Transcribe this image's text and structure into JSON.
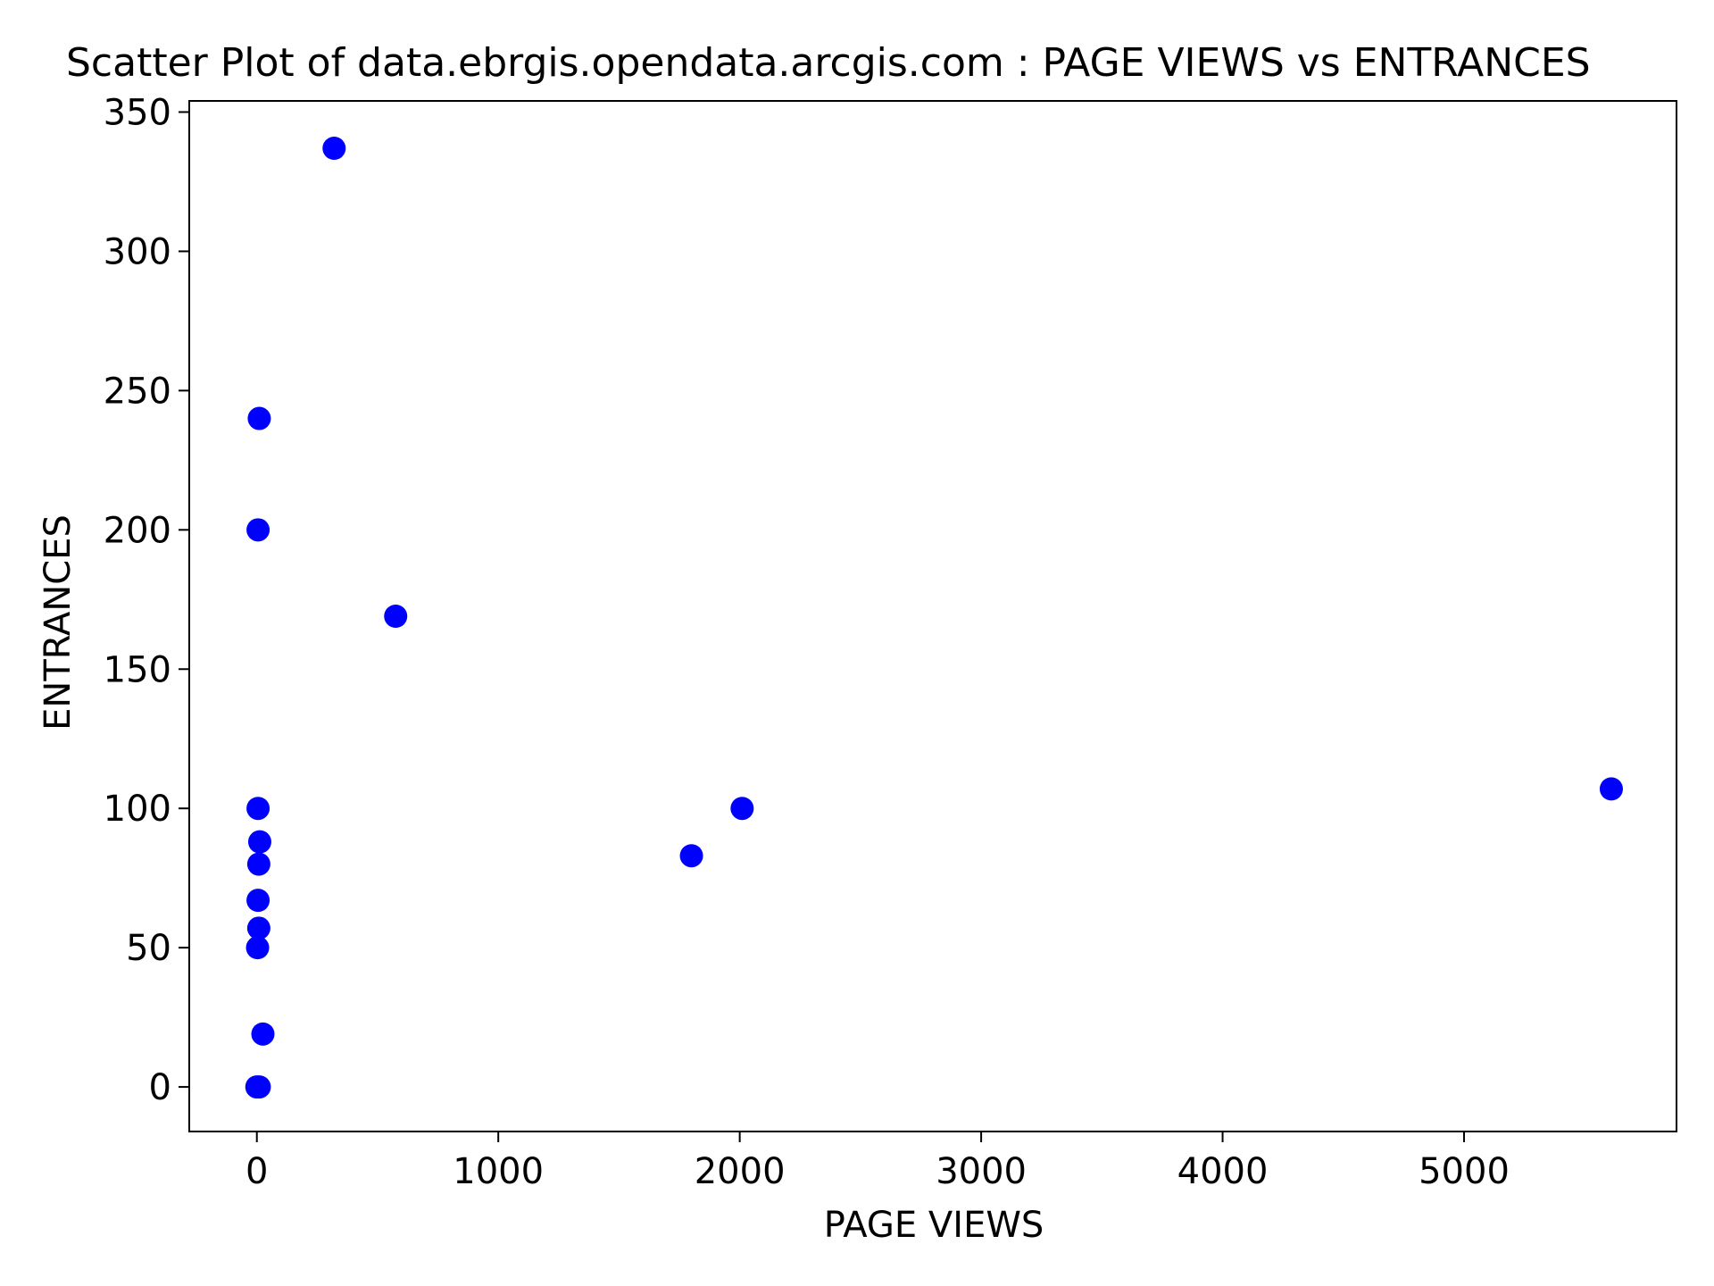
{
  "chart_data": {
    "type": "scatter",
    "title": "Scatter Plot of data.ebrgis.opendata.arcgis.com : PAGE VIEWS vs ENTRANCES",
    "xlabel": "PAGE VIEWS",
    "ylabel": "ENTRANCES",
    "xlim": [
      -280,
      5880
    ],
    "ylim": [
      -16,
      354
    ],
    "xticks": [
      0,
      1000,
      2000,
      3000,
      4000,
      5000
    ],
    "yticks": [
      0,
      50,
      100,
      150,
      200,
      250,
      300,
      350
    ],
    "grid": false,
    "legend": "none",
    "marker_color": "#0000ff",
    "points": [
      {
        "x": 320,
        "y": 337
      },
      {
        "x": 10,
        "y": 240
      },
      {
        "x": 5,
        "y": 200
      },
      {
        "x": 575,
        "y": 169
      },
      {
        "x": 5,
        "y": 100
      },
      {
        "x": 2010,
        "y": 100
      },
      {
        "x": 5610,
        "y": 107
      },
      {
        "x": 12,
        "y": 88
      },
      {
        "x": 8,
        "y": 80
      },
      {
        "x": 1800,
        "y": 83
      },
      {
        "x": 5,
        "y": 67
      },
      {
        "x": 8,
        "y": 57
      },
      {
        "x": 3,
        "y": 50
      },
      {
        "x": 25,
        "y": 19
      },
      {
        "x": 0,
        "y": 0
      },
      {
        "x": 10,
        "y": 0
      }
    ]
  }
}
